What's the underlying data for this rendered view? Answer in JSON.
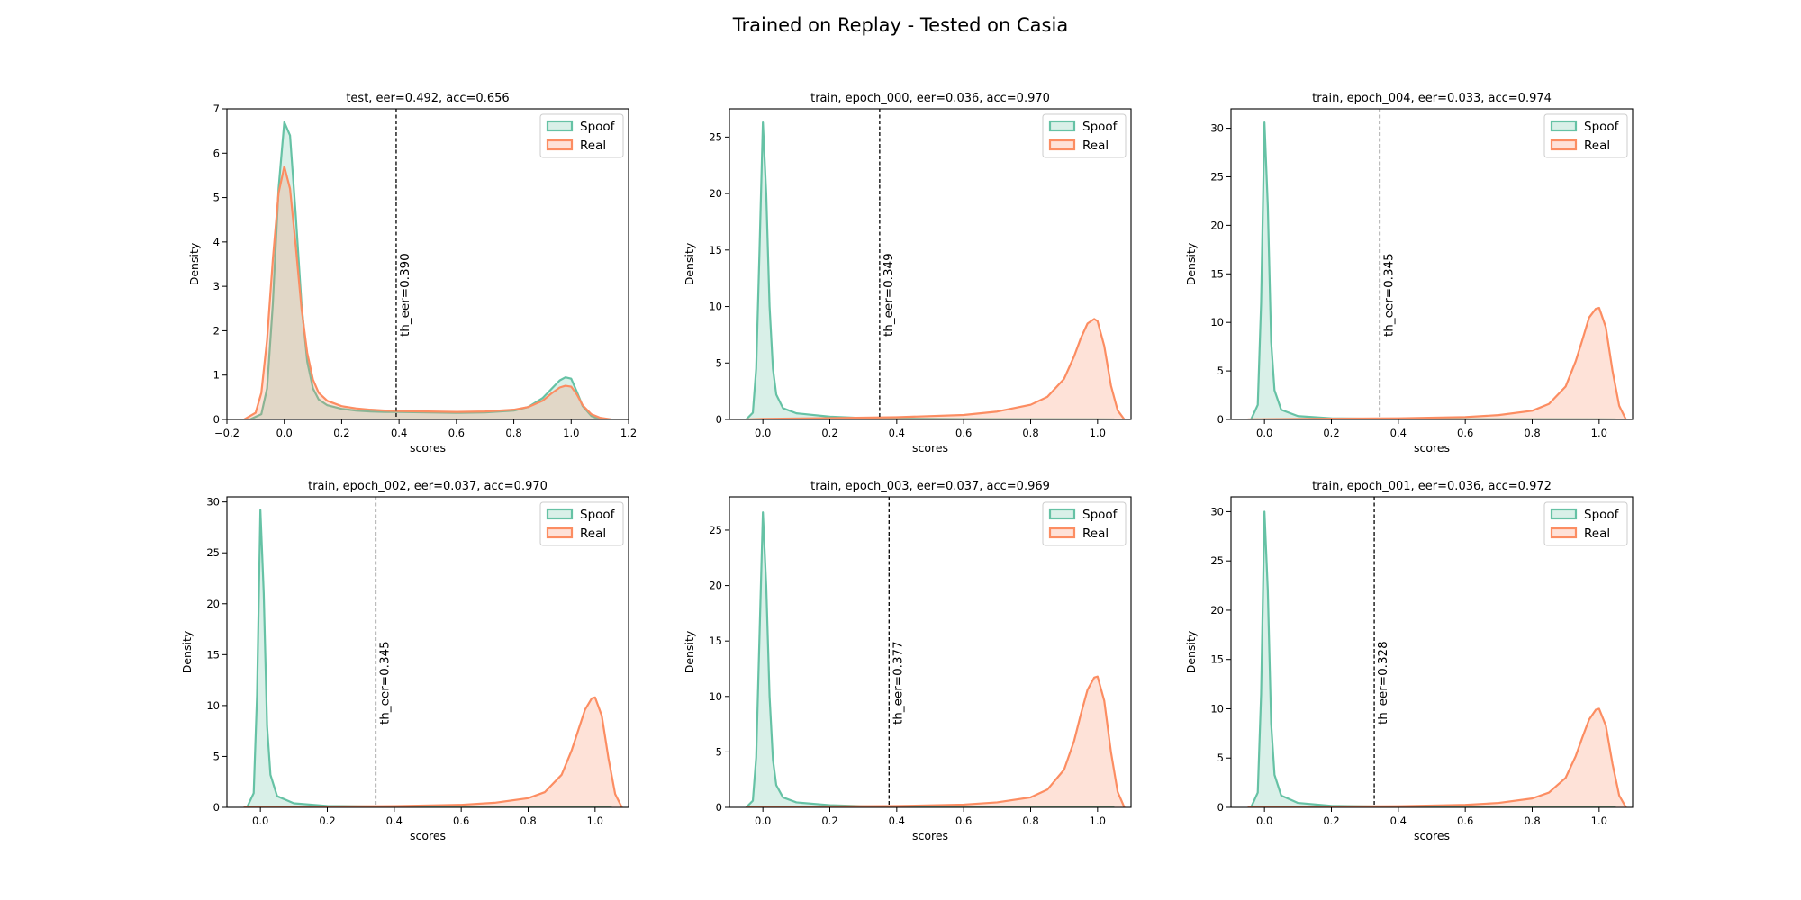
{
  "figure": {
    "suptitle": "Trained on Replay - Tested on Casia"
  },
  "colors": {
    "spoof": "#66c2a5",
    "real": "#fc8d62",
    "threshold": "#000000"
  },
  "chart_data": [
    {
      "type": "area",
      "title": "test, eer=0.492, acc=0.656",
      "xlabel": "scores",
      "ylabel": "Density",
      "xlim": [
        -0.2,
        1.2
      ],
      "ylim": [
        0,
        7
      ],
      "xticks": [
        -0.2,
        0.0,
        0.2,
        0.4,
        0.6,
        0.8,
        1.0,
        1.2
      ],
      "xtick_labels": [
        "−0.2",
        "0.0",
        "0.2",
        "0.4",
        "0.6",
        "0.8",
        "1.0",
        "1.2"
      ],
      "yticks": [
        0,
        1,
        2,
        3,
        4,
        5,
        6,
        7
      ],
      "ytick_labels": [
        "0",
        "1",
        "2",
        "3",
        "4",
        "5",
        "6",
        "7"
      ],
      "threshold": 0.39,
      "threshold_label": "th_eer=0.390",
      "legend": "top-right",
      "series": [
        {
          "name": "Spoof",
          "x": [
            -0.12,
            -0.08,
            -0.06,
            -0.04,
            -0.02,
            0.0,
            0.02,
            0.04,
            0.06,
            0.08,
            0.1,
            0.12,
            0.15,
            0.2,
            0.25,
            0.3,
            0.35,
            0.4,
            0.5,
            0.6,
            0.7,
            0.8,
            0.85,
            0.9,
            0.93,
            0.96,
            0.98,
            1.0,
            1.02,
            1.04,
            1.07,
            1.1
          ],
          "y": [
            0.0,
            0.12,
            0.7,
            2.6,
            5.2,
            6.7,
            6.4,
            4.6,
            2.6,
            1.3,
            0.7,
            0.45,
            0.32,
            0.24,
            0.2,
            0.18,
            0.17,
            0.17,
            0.16,
            0.15,
            0.16,
            0.2,
            0.28,
            0.48,
            0.68,
            0.88,
            0.95,
            0.92,
            0.62,
            0.3,
            0.08,
            0.0
          ]
        },
        {
          "name": "Real",
          "x": [
            -0.14,
            -0.1,
            -0.08,
            -0.06,
            -0.04,
            -0.02,
            0.0,
            0.02,
            0.04,
            0.06,
            0.08,
            0.1,
            0.12,
            0.15,
            0.2,
            0.25,
            0.3,
            0.35,
            0.4,
            0.5,
            0.6,
            0.7,
            0.8,
            0.85,
            0.9,
            0.93,
            0.96,
            0.98,
            1.0,
            1.02,
            1.04,
            1.07,
            1.1,
            1.14
          ],
          "y": [
            0.0,
            0.15,
            0.6,
            1.8,
            3.6,
            5.1,
            5.7,
            5.2,
            3.9,
            2.5,
            1.5,
            0.9,
            0.6,
            0.42,
            0.3,
            0.25,
            0.22,
            0.2,
            0.19,
            0.18,
            0.17,
            0.18,
            0.22,
            0.28,
            0.42,
            0.58,
            0.72,
            0.76,
            0.74,
            0.56,
            0.32,
            0.12,
            0.04,
            0.0
          ]
        }
      ]
    },
    {
      "type": "area",
      "title": "train, epoch_000, eer=0.036, acc=0.970",
      "xlabel": "scores",
      "ylabel": "Density",
      "xlim": [
        -0.1,
        1.1
      ],
      "ylim": [
        0,
        27.5
      ],
      "xticks": [
        0.0,
        0.2,
        0.4,
        0.6,
        0.8,
        1.0
      ],
      "xtick_labels": [
        "0.0",
        "0.2",
        "0.4",
        "0.6",
        "0.8",
        "1.0"
      ],
      "yticks": [
        0,
        5,
        10,
        15,
        20,
        25
      ],
      "ytick_labels": [
        "0",
        "5",
        "10",
        "15",
        "20",
        "25"
      ],
      "threshold": 0.349,
      "threshold_label": "th_eer=0.349",
      "legend": "top-right",
      "series": [
        {
          "name": "Spoof",
          "x": [
            -0.05,
            -0.03,
            -0.02,
            -0.01,
            0.0,
            0.01,
            0.02,
            0.03,
            0.04,
            0.06,
            0.1,
            0.2,
            0.3,
            0.4,
            0.6,
            0.8,
            1.0,
            1.05
          ],
          "y": [
            0.0,
            0.6,
            4.5,
            15.0,
            26.3,
            20.0,
            10.0,
            4.5,
            2.2,
            1.0,
            0.55,
            0.25,
            0.12,
            0.07,
            0.03,
            0.02,
            0.01,
            0.0
          ]
        },
        {
          "name": "Real",
          "x": [
            -0.05,
            0.0,
            0.2,
            0.4,
            0.6,
            0.7,
            0.8,
            0.85,
            0.9,
            0.93,
            0.95,
            0.97,
            0.99,
            1.0,
            1.02,
            1.04,
            1.06,
            1.08
          ],
          "y": [
            0.0,
            0.05,
            0.12,
            0.2,
            0.4,
            0.7,
            1.3,
            2.0,
            3.6,
            5.6,
            7.2,
            8.5,
            8.9,
            8.7,
            6.5,
            3.0,
            0.8,
            0.0
          ]
        }
      ]
    },
    {
      "type": "area",
      "title": "train, epoch_004, eer=0.033, acc=0.974",
      "xlabel": "scores",
      "ylabel": "Density",
      "xlim": [
        -0.1,
        1.1
      ],
      "ylim": [
        0,
        32
      ],
      "xticks": [
        0.0,
        0.2,
        0.4,
        0.6,
        0.8,
        1.0
      ],
      "xtick_labels": [
        "0.0",
        "0.2",
        "0.4",
        "0.6",
        "0.8",
        "1.0"
      ],
      "yticks": [
        0,
        5,
        10,
        15,
        20,
        25,
        30
      ],
      "ytick_labels": [
        "0",
        "5",
        "10",
        "15",
        "20",
        "25",
        "30"
      ],
      "threshold": 0.345,
      "threshold_label": "th_eer=0.345",
      "legend": "top-right",
      "series": [
        {
          "name": "Spoof",
          "x": [
            -0.04,
            -0.02,
            -0.01,
            0.0,
            0.01,
            0.02,
            0.03,
            0.05,
            0.1,
            0.2,
            0.4,
            0.6,
            0.8,
            1.0,
            1.05
          ],
          "y": [
            0.0,
            1.5,
            12.0,
            30.6,
            22.0,
            8.0,
            3.0,
            1.0,
            0.35,
            0.12,
            0.05,
            0.03,
            0.02,
            0.01,
            0.0
          ]
        },
        {
          "name": "Real",
          "x": [
            -0.05,
            0.0,
            0.2,
            0.4,
            0.6,
            0.7,
            0.8,
            0.85,
            0.9,
            0.93,
            0.95,
            0.97,
            0.99,
            1.0,
            1.02,
            1.04,
            1.06,
            1.08
          ],
          "y": [
            0.0,
            0.03,
            0.08,
            0.12,
            0.25,
            0.45,
            0.9,
            1.6,
            3.4,
            6.0,
            8.2,
            10.5,
            11.4,
            11.5,
            9.5,
            5.0,
            1.4,
            0.0
          ]
        }
      ]
    },
    {
      "type": "area",
      "title": "train, epoch_002, eer=0.037, acc=0.970",
      "xlabel": "scores",
      "ylabel": "Density",
      "xlim": [
        -0.1,
        1.1
      ],
      "ylim": [
        0,
        30.5
      ],
      "xticks": [
        0.0,
        0.2,
        0.4,
        0.6,
        0.8,
        1.0
      ],
      "xtick_labels": [
        "0.0",
        "0.2",
        "0.4",
        "0.6",
        "0.8",
        "1.0"
      ],
      "yticks": [
        0,
        5,
        10,
        15,
        20,
        25,
        30
      ],
      "ytick_labels": [
        "0",
        "5",
        "10",
        "15",
        "20",
        "25",
        "30"
      ],
      "threshold": 0.345,
      "threshold_label": "th_eer=0.345",
      "legend": "top-right",
      "series": [
        {
          "name": "Spoof",
          "x": [
            -0.04,
            -0.02,
            -0.01,
            0.0,
            0.01,
            0.02,
            0.03,
            0.05,
            0.1,
            0.2,
            0.4,
            0.6,
            0.8,
            1.0,
            1.05
          ],
          "y": [
            0.0,
            1.4,
            11.0,
            29.2,
            21.0,
            8.0,
            3.2,
            1.1,
            0.4,
            0.14,
            0.06,
            0.04,
            0.02,
            0.01,
            0.0
          ]
        },
        {
          "name": "Real",
          "x": [
            -0.05,
            0.0,
            0.2,
            0.4,
            0.6,
            0.7,
            0.8,
            0.85,
            0.9,
            0.93,
            0.95,
            0.97,
            0.99,
            1.0,
            1.02,
            1.04,
            1.06,
            1.08
          ],
          "y": [
            0.0,
            0.03,
            0.08,
            0.12,
            0.25,
            0.45,
            0.9,
            1.5,
            3.2,
            5.6,
            7.6,
            9.6,
            10.7,
            10.8,
            9.0,
            4.8,
            1.3,
            0.0
          ]
        }
      ]
    },
    {
      "type": "area",
      "title": "train, epoch_003, eer=0.037, acc=0.969",
      "xlabel": "scores",
      "ylabel": "Density",
      "xlim": [
        -0.1,
        1.1
      ],
      "ylim": [
        0,
        28
      ],
      "xticks": [
        0.0,
        0.2,
        0.4,
        0.6,
        0.8,
        1.0
      ],
      "xtick_labels": [
        "0.0",
        "0.2",
        "0.4",
        "0.6",
        "0.8",
        "1.0"
      ],
      "yticks": [
        0,
        5,
        10,
        15,
        20,
        25
      ],
      "ytick_labels": [
        "0",
        "5",
        "10",
        "15",
        "20",
        "25"
      ],
      "threshold": 0.377,
      "threshold_label": "th_eer=0.377",
      "legend": "top-right",
      "series": [
        {
          "name": "Spoof",
          "x": [
            -0.05,
            -0.03,
            -0.02,
            -0.01,
            0.0,
            0.01,
            0.02,
            0.03,
            0.04,
            0.06,
            0.1,
            0.2,
            0.3,
            0.4,
            0.6,
            0.8,
            1.0,
            1.05
          ],
          "y": [
            0.0,
            0.6,
            4.5,
            15.5,
            26.6,
            20.0,
            10.0,
            4.3,
            2.0,
            0.9,
            0.45,
            0.2,
            0.1,
            0.06,
            0.03,
            0.02,
            0.01,
            0.0
          ]
        },
        {
          "name": "Real",
          "x": [
            -0.05,
            0.0,
            0.2,
            0.4,
            0.6,
            0.7,
            0.8,
            0.85,
            0.9,
            0.93,
            0.95,
            0.97,
            0.99,
            1.0,
            1.02,
            1.04,
            1.06,
            1.08
          ],
          "y": [
            0.0,
            0.03,
            0.08,
            0.12,
            0.25,
            0.45,
            0.9,
            1.6,
            3.4,
            6.0,
            8.4,
            10.6,
            11.7,
            11.8,
            9.6,
            5.0,
            1.4,
            0.0
          ]
        }
      ]
    },
    {
      "type": "area",
      "title": "train, epoch_001, eer=0.036, acc=0.972",
      "xlabel": "scores",
      "ylabel": "Density",
      "xlim": [
        -0.1,
        1.1
      ],
      "ylim": [
        0,
        31.5
      ],
      "xticks": [
        0.0,
        0.2,
        0.4,
        0.6,
        0.8,
        1.0
      ],
      "xtick_labels": [
        "0.0",
        "0.2",
        "0.4",
        "0.6",
        "0.8",
        "1.0"
      ],
      "yticks": [
        0,
        5,
        10,
        15,
        20,
        25,
        30
      ],
      "ytick_labels": [
        "0",
        "5",
        "10",
        "15",
        "20",
        "25",
        "30"
      ],
      "threshold": 0.328,
      "threshold_label": "th_eer=0.328",
      "legend": "top-right",
      "series": [
        {
          "name": "Spoof",
          "x": [
            -0.04,
            -0.02,
            -0.01,
            0.0,
            0.01,
            0.02,
            0.03,
            0.05,
            0.1,
            0.2,
            0.4,
            0.6,
            0.8,
            1.0,
            1.05
          ],
          "y": [
            0.0,
            1.5,
            11.5,
            30.0,
            22.0,
            8.5,
            3.3,
            1.2,
            0.45,
            0.15,
            0.06,
            0.04,
            0.02,
            0.01,
            0.0
          ]
        },
        {
          "name": "Real",
          "x": [
            -0.05,
            0.0,
            0.2,
            0.4,
            0.6,
            0.7,
            0.8,
            0.85,
            0.9,
            0.93,
            0.95,
            0.97,
            0.99,
            1.0,
            1.02,
            1.04,
            1.06,
            1.08
          ],
          "y": [
            0.0,
            0.03,
            0.08,
            0.12,
            0.25,
            0.45,
            0.9,
            1.5,
            3.0,
            5.2,
            7.1,
            8.9,
            9.9,
            10.0,
            8.3,
            4.4,
            1.2,
            0.0
          ]
        }
      ]
    }
  ]
}
